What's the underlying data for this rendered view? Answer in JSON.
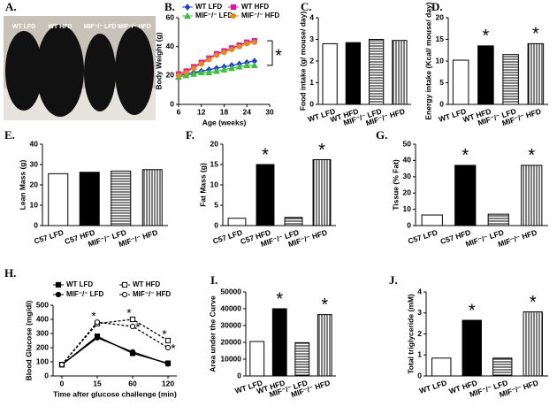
{
  "photo": {
    "label": "A.",
    "captions": [
      "WT LFD",
      "WT HFD",
      "MIF⁻/⁻ LFD",
      "MIF⁻/⁻ HFD"
    ]
  },
  "chart_data": [
    {
      "type": "line",
      "label": "B.",
      "xlabel": "Age (weeks)",
      "ylabel": "Body Weight (g)",
      "x": [
        6,
        8,
        10,
        12,
        14,
        16,
        18,
        20,
        22,
        24,
        26
      ],
      "xlim": [
        6,
        30
      ],
      "xticks": [
        6,
        12,
        18,
        24,
        30
      ],
      "ylim": [
        0,
        60
      ],
      "yticks": [
        0,
        20,
        40,
        60
      ],
      "series": [
        {
          "name": "WT LFD",
          "color": "#1f3fd1",
          "marker": "diamond",
          "values": [
            20,
            21,
            22,
            23,
            24,
            25,
            26,
            27,
            28,
            29,
            30
          ]
        },
        {
          "name": "WT HFD",
          "color": "#e0169a",
          "marker": "square",
          "values": [
            21,
            23,
            26,
            29,
            32,
            35,
            37,
            39,
            41,
            43,
            44
          ]
        },
        {
          "name": "MIF⁻/⁻ LFD",
          "color": "#3dbf3d",
          "marker": "triangle",
          "values": [
            19,
            20,
            21,
            22,
            22,
            23,
            24,
            25,
            26,
            27,
            27
          ]
        },
        {
          "name": "MIF⁻/⁻ HFD",
          "color": "#e08a1f",
          "marker": "circle",
          "values": [
            20,
            22,
            25,
            28,
            31,
            34,
            36,
            38,
            40,
            42,
            43
          ]
        }
      ],
      "annotations": [
        {
          "text": "*"
        }
      ]
    },
    {
      "type": "bar",
      "label": "C.",
      "ylabel": "Food intake (g/ mouse/ day)",
      "categories": [
        "WT LFD",
        "WT HFD",
        "MIF⁻/⁻ LFD",
        "MIF⁻/⁻ HFD"
      ],
      "values": [
        2.8,
        2.85,
        3.0,
        2.95
      ],
      "fills": [
        "white",
        "black",
        "hstripe",
        "vstripe"
      ],
      "ylim": [
        0,
        4
      ],
      "yticks": [
        0,
        1,
        2,
        3,
        4
      ],
      "annotations": []
    },
    {
      "type": "bar",
      "label": "D.",
      "ylabel": "Energy intake (Kcal/ mouse/ day)",
      "categories": [
        "WT LFD",
        "WT HFD",
        "MIF⁻/⁻ LFD",
        "MIF⁻/⁻ HFD"
      ],
      "values": [
        10.2,
        13.5,
        11.5,
        14.0
      ],
      "fills": [
        "white",
        "black",
        "hstripe",
        "vstripe"
      ],
      "ylim": [
        0,
        20
      ],
      "yticks": [
        0,
        5,
        10,
        15,
        20
      ],
      "annotations": [
        {
          "text": "*",
          "category": "WT HFD"
        },
        {
          "text": "*",
          "category": "MIF⁻/⁻ HFD"
        }
      ]
    },
    {
      "type": "bar",
      "label": "E.",
      "ylabel": "Lean Mass (g)",
      "categories": [
        "C57 LFD",
        "C57 HFD",
        "MIF⁻/⁻ LFD",
        "MIF⁻/⁻ HFD"
      ],
      "values": [
        25.5,
        26.2,
        26.8,
        27.5
      ],
      "fills": [
        "white",
        "black",
        "hstripe",
        "vstripe"
      ],
      "ylim": [
        0,
        40
      ],
      "yticks": [
        0,
        10,
        20,
        30,
        40
      ],
      "annotations": []
    },
    {
      "type": "bar",
      "label": "F.",
      "ylabel": "Fat Mass (g)",
      "categories": [
        "C57 LFD",
        "C57 HFD",
        "MIF⁻/⁻ LFD",
        "MIF⁻/⁻ HFD"
      ],
      "values": [
        1.8,
        15,
        2.0,
        16.2
      ],
      "fills": [
        "white",
        "black",
        "hstripe",
        "vstripe"
      ],
      "ylim": [
        0,
        20
      ],
      "yticks": [
        0,
        5,
        10,
        15,
        20
      ],
      "annotations": [
        {
          "text": "*",
          "category": "C57 HFD"
        },
        {
          "text": "*",
          "category": "MIF⁻/⁻ HFD"
        }
      ]
    },
    {
      "type": "bar",
      "label": "G.",
      "ylabel": "Tissue (% Fat)",
      "categories": [
        "C57 LFD",
        "C57 HFD",
        "MIF⁻/⁻ LFD",
        "MIF⁻/⁻ HFD"
      ],
      "values": [
        6.5,
        37,
        7,
        37
      ],
      "fills": [
        "white",
        "black",
        "hstripe",
        "vstripe"
      ],
      "ylim": [
        0,
        50
      ],
      "yticks": [
        0,
        10,
        20,
        30,
        40,
        50
      ],
      "annotations": [
        {
          "text": "*",
          "category": "C57 HFD"
        },
        {
          "text": "*",
          "category": "MIF⁻/⁻ HFD"
        }
      ]
    },
    {
      "type": "line",
      "label": "H.",
      "xlabel": "Time after glucose challenge (min)",
      "ylabel": "Blood Glucose (mg/dl)",
      "categories": [
        "0",
        "15",
        "60",
        "120"
      ],
      "ylim": [
        0,
        500
      ],
      "yticks": [
        0,
        100,
        200,
        300,
        400,
        500
      ],
      "series": [
        {
          "name": "WT LFD",
          "color": "#000000",
          "marker": "square",
          "filled": true,
          "dashed": false,
          "values": [
            80,
            280,
            160,
            90
          ]
        },
        {
          "name": "WT HFD",
          "color": "#000000",
          "marker": "square",
          "filled": false,
          "dashed": true,
          "values": [
            80,
            370,
            400,
            250
          ]
        },
        {
          "name": "MIF⁻/⁻ LFD",
          "color": "#000000",
          "marker": "circle",
          "filled": true,
          "dashed": false,
          "values": [
            80,
            270,
            170,
            85
          ]
        },
        {
          "name": "MIF⁻/⁻ HFD",
          "color": "#000000",
          "marker": "circle",
          "filled": false,
          "dashed": true,
          "values": [
            80,
            380,
            350,
            200
          ]
        }
      ],
      "annotations": [
        {
          "text": "*",
          "category": "15"
        },
        {
          "text": "*",
          "category": "60"
        },
        {
          "text": "*",
          "category": "60"
        },
        {
          "text": "*",
          "category": "120"
        },
        {
          "text": "*",
          "category": "120"
        }
      ]
    },
    {
      "type": "bar",
      "label": "I.",
      "ylabel": "Area under the Curve",
      "categories": [
        "WT LFD",
        "WT HFD",
        "MIF⁻/⁻ LFD",
        "MIF⁻/⁻ HFD"
      ],
      "values": [
        20500,
        40000,
        19800,
        36500
      ],
      "fills": [
        "white",
        "black",
        "hstripe",
        "vstripe"
      ],
      "ylim": [
        0,
        50000
      ],
      "yticks": [
        0,
        10000,
        20000,
        30000,
        40000,
        50000
      ],
      "annotations": [
        {
          "text": "*",
          "category": "WT HFD"
        },
        {
          "text": "*",
          "category": "MIF⁻/⁻ HFD"
        }
      ]
    },
    {
      "type": "bar",
      "label": "J.",
      "ylabel": "Total triglyceride (mM)",
      "categories": [
        "WT LFD",
        "WT HFD",
        "MIF⁻/⁻ LFD",
        "MIF⁻/⁻ HFD"
      ],
      "values": [
        0.85,
        2.65,
        0.85,
        3.05
      ],
      "fills": [
        "white",
        "black",
        "hstripe",
        "vstripe"
      ],
      "ylim": [
        0,
        4
      ],
      "yticks": [
        0,
        1,
        2,
        3,
        4
      ],
      "annotations": [
        {
          "text": "*",
          "category": "WT HFD"
        },
        {
          "text": "*",
          "category": "MIF⁻/⁻ HFD"
        }
      ]
    }
  ]
}
